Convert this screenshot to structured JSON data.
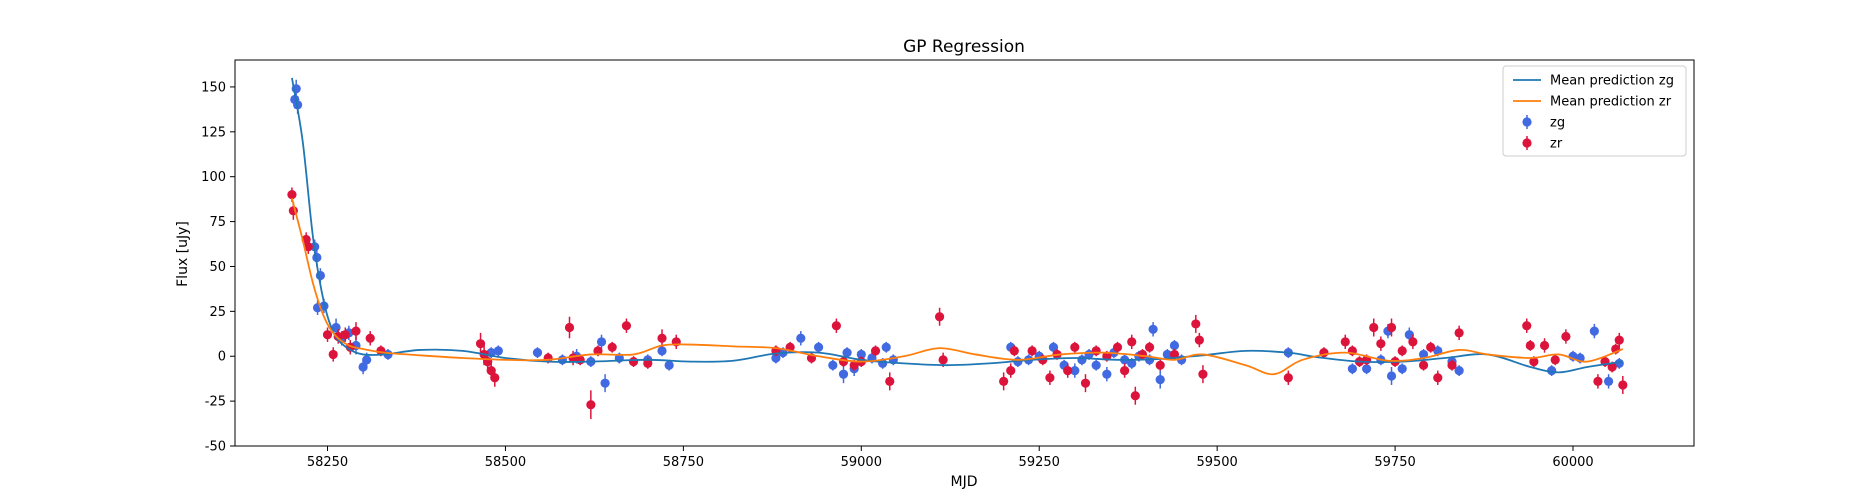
{
  "chart_data": {
    "type": "scatter",
    "title": "GP Regression",
    "xlabel": "MJD",
    "ylabel": "Flux [uJy]",
    "xlim": [
      58120,
      60170
    ],
    "ylim": [
      -50,
      165
    ],
    "xticks": [
      58250,
      58500,
      58750,
      59000,
      59250,
      59500,
      59750,
      60000
    ],
    "yticks": [
      -50,
      -25,
      0,
      25,
      50,
      75,
      100,
      125,
      150
    ],
    "grid": false,
    "legend_position": "top-right",
    "legend": [
      "Mean prediction zg",
      "Mean prediction zr",
      "zg",
      "zr"
    ],
    "colors": {
      "mean_zg": "#1f77b4",
      "mean_zr": "#ff7f0e",
      "zg": "#4169e1",
      "zr": "#dc143c"
    },
    "lines": [
      {
        "name": "Mean prediction zg",
        "color": "#1f77b4",
        "x": [
          58200,
          58215,
          58230,
          58245,
          58260,
          58280,
          58300,
          58330,
          58380,
          58440,
          58500,
          58560,
          58620,
          58700,
          58760,
          58820,
          58880,
          58940,
          59000,
          59060,
          59120,
          59180,
          59240,
          59300,
          59360,
          59420,
          59480,
          59540,
          59600,
          59640,
          59700,
          59760,
          59820,
          59880,
          59940,
          59980,
          60020,
          60070
        ],
        "y": [
          155,
          120,
          65,
          30,
          12,
          4,
          1,
          1,
          3.5,
          3,
          -1,
          -3,
          -3,
          -2,
          -3,
          -2.5,
          1.5,
          2,
          -2,
          -4,
          -5,
          -4,
          -2,
          -1,
          -2,
          -1.5,
          0.5,
          3,
          2,
          -0.5,
          -3,
          -3,
          -1,
          1,
          -6,
          -9,
          -6,
          -3
        ]
      },
      {
        "name": "Mean prediction zr",
        "color": "#ff7f0e",
        "x": [
          58200,
          58215,
          58230,
          58245,
          58260,
          58280,
          58300,
          58330,
          58380,
          58440,
          58500,
          58560,
          58620,
          58680,
          58720,
          58760,
          58820,
          58880,
          58940,
          59000,
          59060,
          59110,
          59160,
          59220,
          59280,
          59340,
          59400,
          59440,
          59480,
          59540,
          59580,
          59620,
          59680,
          59740,
          59790,
          59840,
          59880,
          59940,
          59980,
          60020,
          60070
        ],
        "y": [
          88,
          65,
          40,
          22,
          12,
          6,
          4,
          2,
          0.5,
          -1,
          -2,
          -2,
          1,
          1,
          6,
          6.5,
          5.5,
          4.5,
          0,
          -3,
          0,
          4.5,
          1,
          -2,
          1,
          2,
          0,
          -2,
          1,
          -5,
          -10,
          -2,
          2,
          -2.5,
          -1,
          3.5,
          1,
          -1,
          1,
          -3,
          4
        ]
      }
    ],
    "series": [
      {
        "name": "zg",
        "color": "#4169e1",
        "points": [
          [
            58204,
            143,
            5
          ],
          [
            58206,
            149,
            5
          ],
          [
            58208,
            140,
            5
          ],
          [
            58232,
            61,
            4
          ],
          [
            58235,
            55,
            5
          ],
          [
            58240,
            45,
            4
          ],
          [
            58236,
            27,
            4
          ],
          [
            58245,
            28,
            4
          ],
          [
            58262,
            16,
            5
          ],
          [
            58270,
            10,
            4
          ],
          [
            58280,
            13,
            4
          ],
          [
            58290,
            6,
            5
          ],
          [
            58300,
            -6,
            4
          ],
          [
            58305,
            -2,
            4
          ],
          [
            58335,
            1,
            3
          ],
          [
            58475,
            -3,
            3
          ],
          [
            58480,
            2,
            3
          ],
          [
            58490,
            3,
            3
          ],
          [
            58545,
            2,
            3
          ],
          [
            58580,
            -2,
            3
          ],
          [
            58600,
            0,
            4
          ],
          [
            58620,
            -3,
            3
          ],
          [
            58635,
            8,
            4
          ],
          [
            58640,
            -15,
            5
          ],
          [
            58660,
            -1,
            3
          ],
          [
            58700,
            -2,
            3
          ],
          [
            58720,
            3,
            3
          ],
          [
            58730,
            -5,
            3
          ],
          [
            58880,
            -1,
            3
          ],
          [
            58890,
            2,
            3
          ],
          [
            58915,
            10,
            4
          ],
          [
            58940,
            5,
            3
          ],
          [
            58960,
            -5,
            3
          ],
          [
            58975,
            -10,
            5
          ],
          [
            58980,
            2,
            3
          ],
          [
            58990,
            -7,
            4
          ],
          [
            59000,
            1,
            3
          ],
          [
            59015,
            -1,
            3
          ],
          [
            59030,
            -4,
            3
          ],
          [
            59035,
            5,
            3
          ],
          [
            59045,
            -2,
            3
          ],
          [
            59210,
            5,
            3
          ],
          [
            59220,
            -3,
            3
          ],
          [
            59235,
            -2,
            3
          ],
          [
            59250,
            0,
            3
          ],
          [
            59270,
            5,
            3
          ],
          [
            59285,
            -5,
            3
          ],
          [
            59300,
            -8,
            4
          ],
          [
            59310,
            -2,
            3
          ],
          [
            59320,
            1,
            3
          ],
          [
            59330,
            -5,
            3
          ],
          [
            59345,
            -10,
            4
          ],
          [
            59355,
            2,
            3
          ],
          [
            59370,
            -2,
            3
          ],
          [
            59380,
            -4,
            3
          ],
          [
            59390,
            0,
            3
          ],
          [
            59405,
            -2,
            3
          ],
          [
            59410,
            15,
            4
          ],
          [
            59420,
            -13,
            5
          ],
          [
            59430,
            1,
            3
          ],
          [
            59440,
            6,
            3
          ],
          [
            59450,
            -2,
            3
          ],
          [
            59600,
            2,
            3
          ],
          [
            59690,
            -7,
            3
          ],
          [
            59710,
            -7,
            3
          ],
          [
            59730,
            -2,
            3
          ],
          [
            59740,
            14,
            4
          ],
          [
            59745,
            -11,
            5
          ],
          [
            59760,
            -7,
            3
          ],
          [
            59770,
            12,
            4
          ],
          [
            59790,
            1,
            3
          ],
          [
            59810,
            3,
            3
          ],
          [
            59830,
            -3,
            3
          ],
          [
            59840,
            -8,
            3
          ],
          [
            59970,
            -8,
            3
          ],
          [
            60000,
            0,
            3
          ],
          [
            60010,
            -1,
            3
          ],
          [
            60030,
            14,
            4
          ],
          [
            60050,
            -14,
            4
          ],
          [
            60065,
            -4,
            3
          ]
        ]
      },
      {
        "name": "zr",
        "color": "#dc143c",
        "points": [
          [
            58200,
            90,
            4
          ],
          [
            58202,
            81,
            5
          ],
          [
            58220,
            65,
            4
          ],
          [
            58223,
            61,
            4
          ],
          [
            58250,
            12,
            4
          ],
          [
            58258,
            1,
            4
          ],
          [
            58265,
            11,
            4
          ],
          [
            58275,
            12,
            4
          ],
          [
            58282,
            5,
            4
          ],
          [
            58290,
            14,
            5
          ],
          [
            58310,
            10,
            4
          ],
          [
            58325,
            3,
            3
          ],
          [
            58465,
            7,
            6
          ],
          [
            58470,
            1,
            6
          ],
          [
            58475,
            -3,
            6
          ],
          [
            58480,
            -8,
            5
          ],
          [
            58485,
            -12,
            5
          ],
          [
            58560,
            -1,
            3
          ],
          [
            58590,
            16,
            6
          ],
          [
            58595,
            -1,
            4
          ],
          [
            58605,
            -2,
            3
          ],
          [
            58620,
            -27,
            8
          ],
          [
            58630,
            3,
            3
          ],
          [
            58650,
            5,
            3
          ],
          [
            58670,
            17,
            4
          ],
          [
            58680,
            -3,
            3
          ],
          [
            58700,
            -4,
            3
          ],
          [
            58720,
            10,
            5
          ],
          [
            58740,
            8,
            4
          ],
          [
            58880,
            3,
            3
          ],
          [
            58900,
            5,
            3
          ],
          [
            58930,
            -1,
            3
          ],
          [
            58965,
            17,
            4
          ],
          [
            58975,
            -3,
            3
          ],
          [
            58990,
            -5,
            3
          ],
          [
            59000,
            -3,
            3
          ],
          [
            59020,
            3,
            3
          ],
          [
            59040,
            -14,
            5
          ],
          [
            59110,
            22,
            5
          ],
          [
            59115,
            -2,
            4
          ],
          [
            59200,
            -14,
            5
          ],
          [
            59210,
            -8,
            4
          ],
          [
            59215,
            3,
            3
          ],
          [
            59240,
            3,
            3
          ],
          [
            59255,
            -2,
            3
          ],
          [
            59265,
            -12,
            4
          ],
          [
            59275,
            1,
            3
          ],
          [
            59290,
            -8,
            4
          ],
          [
            59300,
            5,
            3
          ],
          [
            59315,
            -15,
            5
          ],
          [
            59330,
            3,
            3
          ],
          [
            59345,
            0,
            3
          ],
          [
            59360,
            5,
            3
          ],
          [
            59370,
            -8,
            4
          ],
          [
            59380,
            8,
            4
          ],
          [
            59385,
            -22,
            5
          ],
          [
            59395,
            1,
            3
          ],
          [
            59405,
            5,
            3
          ],
          [
            59420,
            -5,
            3
          ],
          [
            59440,
            1,
            3
          ],
          [
            59470,
            18,
            5
          ],
          [
            59475,
            9,
            4
          ],
          [
            59480,
            -10,
            5
          ],
          [
            59600,
            -12,
            4
          ],
          [
            59650,
            2,
            3
          ],
          [
            59680,
            8,
            4
          ],
          [
            59690,
            3,
            3
          ],
          [
            59700,
            -3,
            3
          ],
          [
            59710,
            -2,
            3
          ],
          [
            59720,
            16,
            5
          ],
          [
            59730,
            7,
            4
          ],
          [
            59745,
            16,
            5
          ],
          [
            59750,
            -3,
            3
          ],
          [
            59760,
            3,
            3
          ],
          [
            59775,
            8,
            4
          ],
          [
            59790,
            -5,
            3
          ],
          [
            59800,
            5,
            3
          ],
          [
            59810,
            -12,
            4
          ],
          [
            59830,
            -5,
            3
          ],
          [
            59840,
            13,
            4
          ],
          [
            59935,
            17,
            4
          ],
          [
            59940,
            6,
            3
          ],
          [
            59945,
            -3,
            3
          ],
          [
            59960,
            6,
            4
          ],
          [
            59975,
            -2,
            3
          ],
          [
            59990,
            11,
            4
          ],
          [
            60035,
            -14,
            4
          ],
          [
            60045,
            -3,
            3
          ],
          [
            60055,
            -6,
            3
          ],
          [
            60060,
            4,
            3
          ],
          [
            60065,
            9,
            4
          ],
          [
            60070,
            -16,
            5
          ]
        ]
      }
    ]
  }
}
